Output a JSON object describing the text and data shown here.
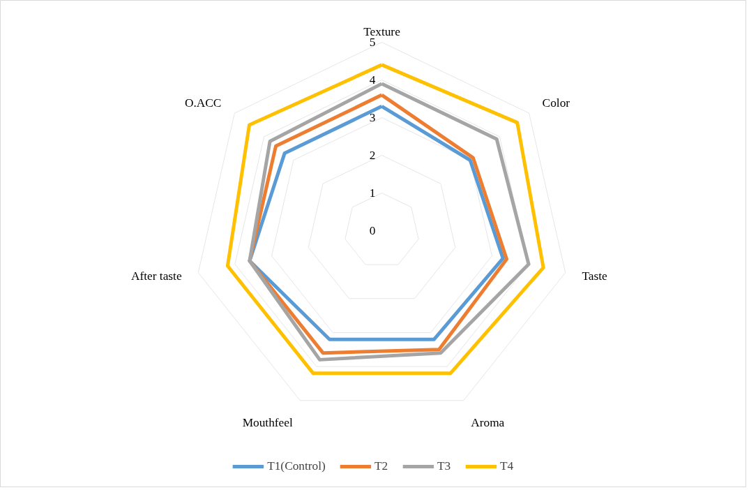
{
  "chart_data": {
    "type": "radar",
    "categories": [
      "Texture",
      "Color",
      "Taste",
      "Aroma",
      "Mouthfeel",
      "After taste",
      "O.ACC"
    ],
    "series": [
      {
        "name": "T1(Control)",
        "color": "#5b9bd5",
        "values": [
          3.3,
          3.0,
          3.3,
          3.2,
          3.2,
          3.6,
          3.3
        ]
      },
      {
        "name": "T2",
        "color": "#ed7d31",
        "values": [
          3.6,
          3.1,
          3.4,
          3.5,
          3.6,
          3.6,
          3.6
        ]
      },
      {
        "name": "T3",
        "color": "#a5a5a5",
        "values": [
          3.9,
          3.9,
          4.0,
          3.6,
          3.8,
          3.6,
          3.8
        ]
      },
      {
        "name": "T4",
        "color": "#ffc000",
        "values": [
          4.4,
          4.6,
          4.4,
          4.2,
          4.2,
          4.2,
          4.5
        ]
      }
    ],
    "ylim": [
      0,
      5
    ],
    "yticks": [
      0,
      1,
      2,
      3,
      4,
      5
    ],
    "grid": true,
    "legend": "bottom"
  }
}
